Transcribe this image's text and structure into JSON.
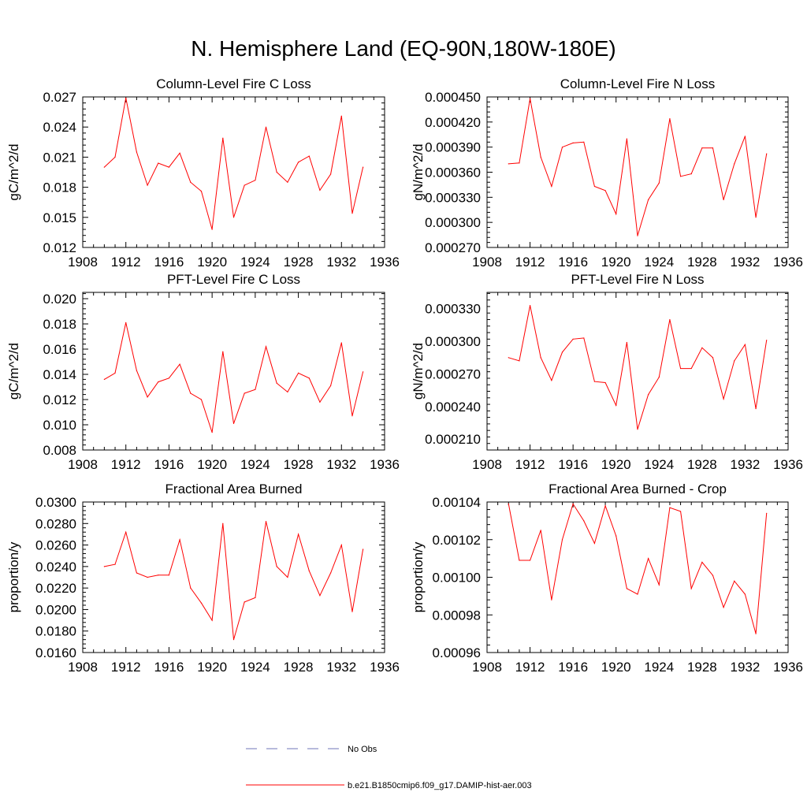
{
  "title": "N. Hemisphere Land (EQ-90N,180W-180E)",
  "legend": [
    {
      "label": "No Obs",
      "color": "#6f76b8",
      "style": "dashed"
    },
    {
      "label": "b.e21.B1850cmip6.f09_g17.DAMIP-hist-aer.003",
      "color": "#ff0000",
      "style": "solid"
    }
  ],
  "chart_data": [
    {
      "type": "line",
      "title": "Column-Level Fire C Loss",
      "ylabel": "gC/m^2/d",
      "xlim": [
        1908,
        1936
      ],
      "ylim": [
        0.012,
        0.027
      ],
      "xticks": [
        "1908",
        "1912",
        "1916",
        "1920",
        "1924",
        "1928",
        "1932",
        "1936"
      ],
      "yticks": [
        "0.012",
        "0.015",
        "0.018",
        "0.021",
        "0.024",
        "0.027"
      ],
      "series": [
        {
          "color": "#ff0000",
          "x": [
            1910,
            1911,
            1912,
            1913,
            1914,
            1915,
            1916,
            1917,
            1918,
            1919,
            1920,
            1921,
            1922,
            1923,
            1924,
            1925,
            1926,
            1927,
            1928,
            1929,
            1930,
            1931,
            1932,
            1933,
            1934
          ],
          "y": [
            0.02,
            0.021,
            0.0269,
            0.0215,
            0.0182,
            0.0204,
            0.02,
            0.0214,
            0.0185,
            0.0176,
            0.0138,
            0.0229,
            0.015,
            0.0182,
            0.0187,
            0.024,
            0.0195,
            0.0185,
            0.0205,
            0.0211,
            0.0177,
            0.0193,
            0.0251,
            0.0154,
            0.02
          ]
        }
      ]
    },
    {
      "type": "line",
      "title": "Column-Level Fire N Loss",
      "ylabel": "gN/m^2/d",
      "xlim": [
        1908,
        1936
      ],
      "ylim": [
        0.00027,
        0.00045
      ],
      "xticks": [
        "1908",
        "1912",
        "1916",
        "1920",
        "1924",
        "1928",
        "1932",
        "1936"
      ],
      "yticks": [
        "0.000270",
        "0.000300",
        "0.000330",
        "0.000360",
        "0.000390",
        "0.000420",
        "0.000450"
      ],
      "series": [
        {
          "color": "#ff0000",
          "x": [
            1910,
            1911,
            1912,
            1913,
            1914,
            1915,
            1916,
            1917,
            1918,
            1919,
            1920,
            1921,
            1922,
            1923,
            1924,
            1925,
            1926,
            1927,
            1928,
            1929,
            1930,
            1931,
            1932,
            1933,
            1934
          ],
          "y": [
            0.00037,
            0.000371,
            0.000448,
            0.000378,
            0.000343,
            0.00039,
            0.000395,
            0.000396,
            0.000343,
            0.000338,
            0.00031,
            0.0004,
            0.000284,
            0.000327,
            0.000347,
            0.000424,
            0.000355,
            0.000358,
            0.000389,
            0.000389,
            0.000327,
            0.00037,
            0.000403,
            0.000306,
            0.000382
          ]
        }
      ]
    },
    {
      "type": "line",
      "title": "PFT-Level Fire C Loss",
      "ylabel": "gC/m^2/d",
      "xlim": [
        1908,
        1936
      ],
      "ylim": [
        0.008,
        0.0205
      ],
      "xticks": [
        "1908",
        "1912",
        "1916",
        "1920",
        "1924",
        "1928",
        "1932",
        "1936"
      ],
      "yticks": [
        "0.008",
        "0.010",
        "0.012",
        "0.014",
        "0.016",
        "0.018",
        "0.020"
      ],
      "series": [
        {
          "color": "#ff0000",
          "x": [
            1910,
            1911,
            1912,
            1913,
            1914,
            1915,
            1916,
            1917,
            1918,
            1919,
            1920,
            1921,
            1922,
            1923,
            1924,
            1925,
            1926,
            1927,
            1928,
            1929,
            1930,
            1931,
            1932,
            1933,
            1934
          ],
          "y": [
            0.0136,
            0.0141,
            0.0181,
            0.0143,
            0.0122,
            0.0134,
            0.0137,
            0.0148,
            0.0125,
            0.012,
            0.0094,
            0.0158,
            0.0101,
            0.0125,
            0.0128,
            0.0162,
            0.0133,
            0.0126,
            0.0141,
            0.0137,
            0.0118,
            0.0131,
            0.0165,
            0.0107,
            0.0142
          ]
        }
      ]
    },
    {
      "type": "line",
      "title": "PFT-Level Fire N Loss",
      "ylabel": "gN/m^2/d",
      "xlim": [
        1908,
        1936
      ],
      "ylim": [
        0.0002,
        0.000345
      ],
      "xticks": [
        "1908",
        "1912",
        "1916",
        "1920",
        "1924",
        "1928",
        "1932",
        "1936"
      ],
      "yticks": [
        "0.000210",
        "0.000240",
        "0.000270",
        "0.000300",
        "0.000330"
      ],
      "series": [
        {
          "color": "#ff0000",
          "x": [
            1910,
            1911,
            1912,
            1913,
            1914,
            1915,
            1916,
            1917,
            1918,
            1919,
            1920,
            1921,
            1922,
            1923,
            1924,
            1925,
            1926,
            1927,
            1928,
            1929,
            1930,
            1931,
            1932,
            1933,
            1934
          ],
          "y": [
            0.000285,
            0.000282,
            0.000333,
            0.000285,
            0.000264,
            0.00029,
            0.000302,
            0.000303,
            0.000263,
            0.000262,
            0.000241,
            0.000299,
            0.000219,
            0.000251,
            0.000267,
            0.00032,
            0.000275,
            0.000275,
            0.000294,
            0.000285,
            0.000247,
            0.000282,
            0.000297,
            0.000238,
            0.000301
          ]
        }
      ]
    },
    {
      "type": "line",
      "title": "Fractional Area Burned",
      "ylabel": "proportion/y",
      "xlim": [
        1908,
        1936
      ],
      "ylim": [
        0.016,
        0.03
      ],
      "xticks": [
        "1908",
        "1912",
        "1916",
        "1920",
        "1924",
        "1928",
        "1932",
        "1936"
      ],
      "yticks": [
        "0.0160",
        "0.0180",
        "0.0200",
        "0.0220",
        "0.0240",
        "0.0260",
        "0.0280",
        "0.0300"
      ],
      "series": [
        {
          "color": "#ff0000",
          "x": [
            1910,
            1911,
            1912,
            1913,
            1914,
            1915,
            1916,
            1917,
            1918,
            1919,
            1920,
            1921,
            1922,
            1923,
            1924,
            1925,
            1926,
            1927,
            1928,
            1929,
            1930,
            1931,
            1932,
            1933,
            1934
          ],
          "y": [
            0.024,
            0.0242,
            0.0272,
            0.0234,
            0.023,
            0.0232,
            0.0232,
            0.0265,
            0.022,
            0.0206,
            0.019,
            0.028,
            0.0172,
            0.0207,
            0.0211,
            0.0282,
            0.024,
            0.023,
            0.027,
            0.0236,
            0.0213,
            0.0234,
            0.026,
            0.0198,
            0.0256
          ]
        }
      ]
    },
    {
      "type": "line",
      "title": "Fractional Area Burned - Crop",
      "ylabel": "proportion/y",
      "xlim": [
        1908,
        1936
      ],
      "ylim": [
        0.00096,
        0.00104
      ],
      "xticks": [
        "1908",
        "1912",
        "1916",
        "1920",
        "1924",
        "1928",
        "1932",
        "1936"
      ],
      "yticks": [
        "0.00096",
        "0.00098",
        "0.00100",
        "0.00102",
        "0.00104"
      ],
      "series": [
        {
          "color": "#ff0000",
          "x": [
            1910,
            1911,
            1912,
            1913,
            1914,
            1915,
            1916,
            1917,
            1918,
            1919,
            1920,
            1921,
            1922,
            1923,
            1924,
            1925,
            1926,
            1927,
            1928,
            1929,
            1930,
            1931,
            1932,
            1933,
            1934
          ],
          "y": [
            0.001039,
            0.001009,
            0.001009,
            0.001025,
            0.000988,
            0.00102,
            0.001039,
            0.00103,
            0.001018,
            0.001038,
            0.001022,
            0.000994,
            0.000991,
            0.00101,
            0.000996,
            0.001037,
            0.001035,
            0.000994,
            0.001008,
            0.001001,
            0.000984,
            0.000998,
            0.000991,
            0.00097,
            0.001034
          ]
        }
      ]
    }
  ]
}
